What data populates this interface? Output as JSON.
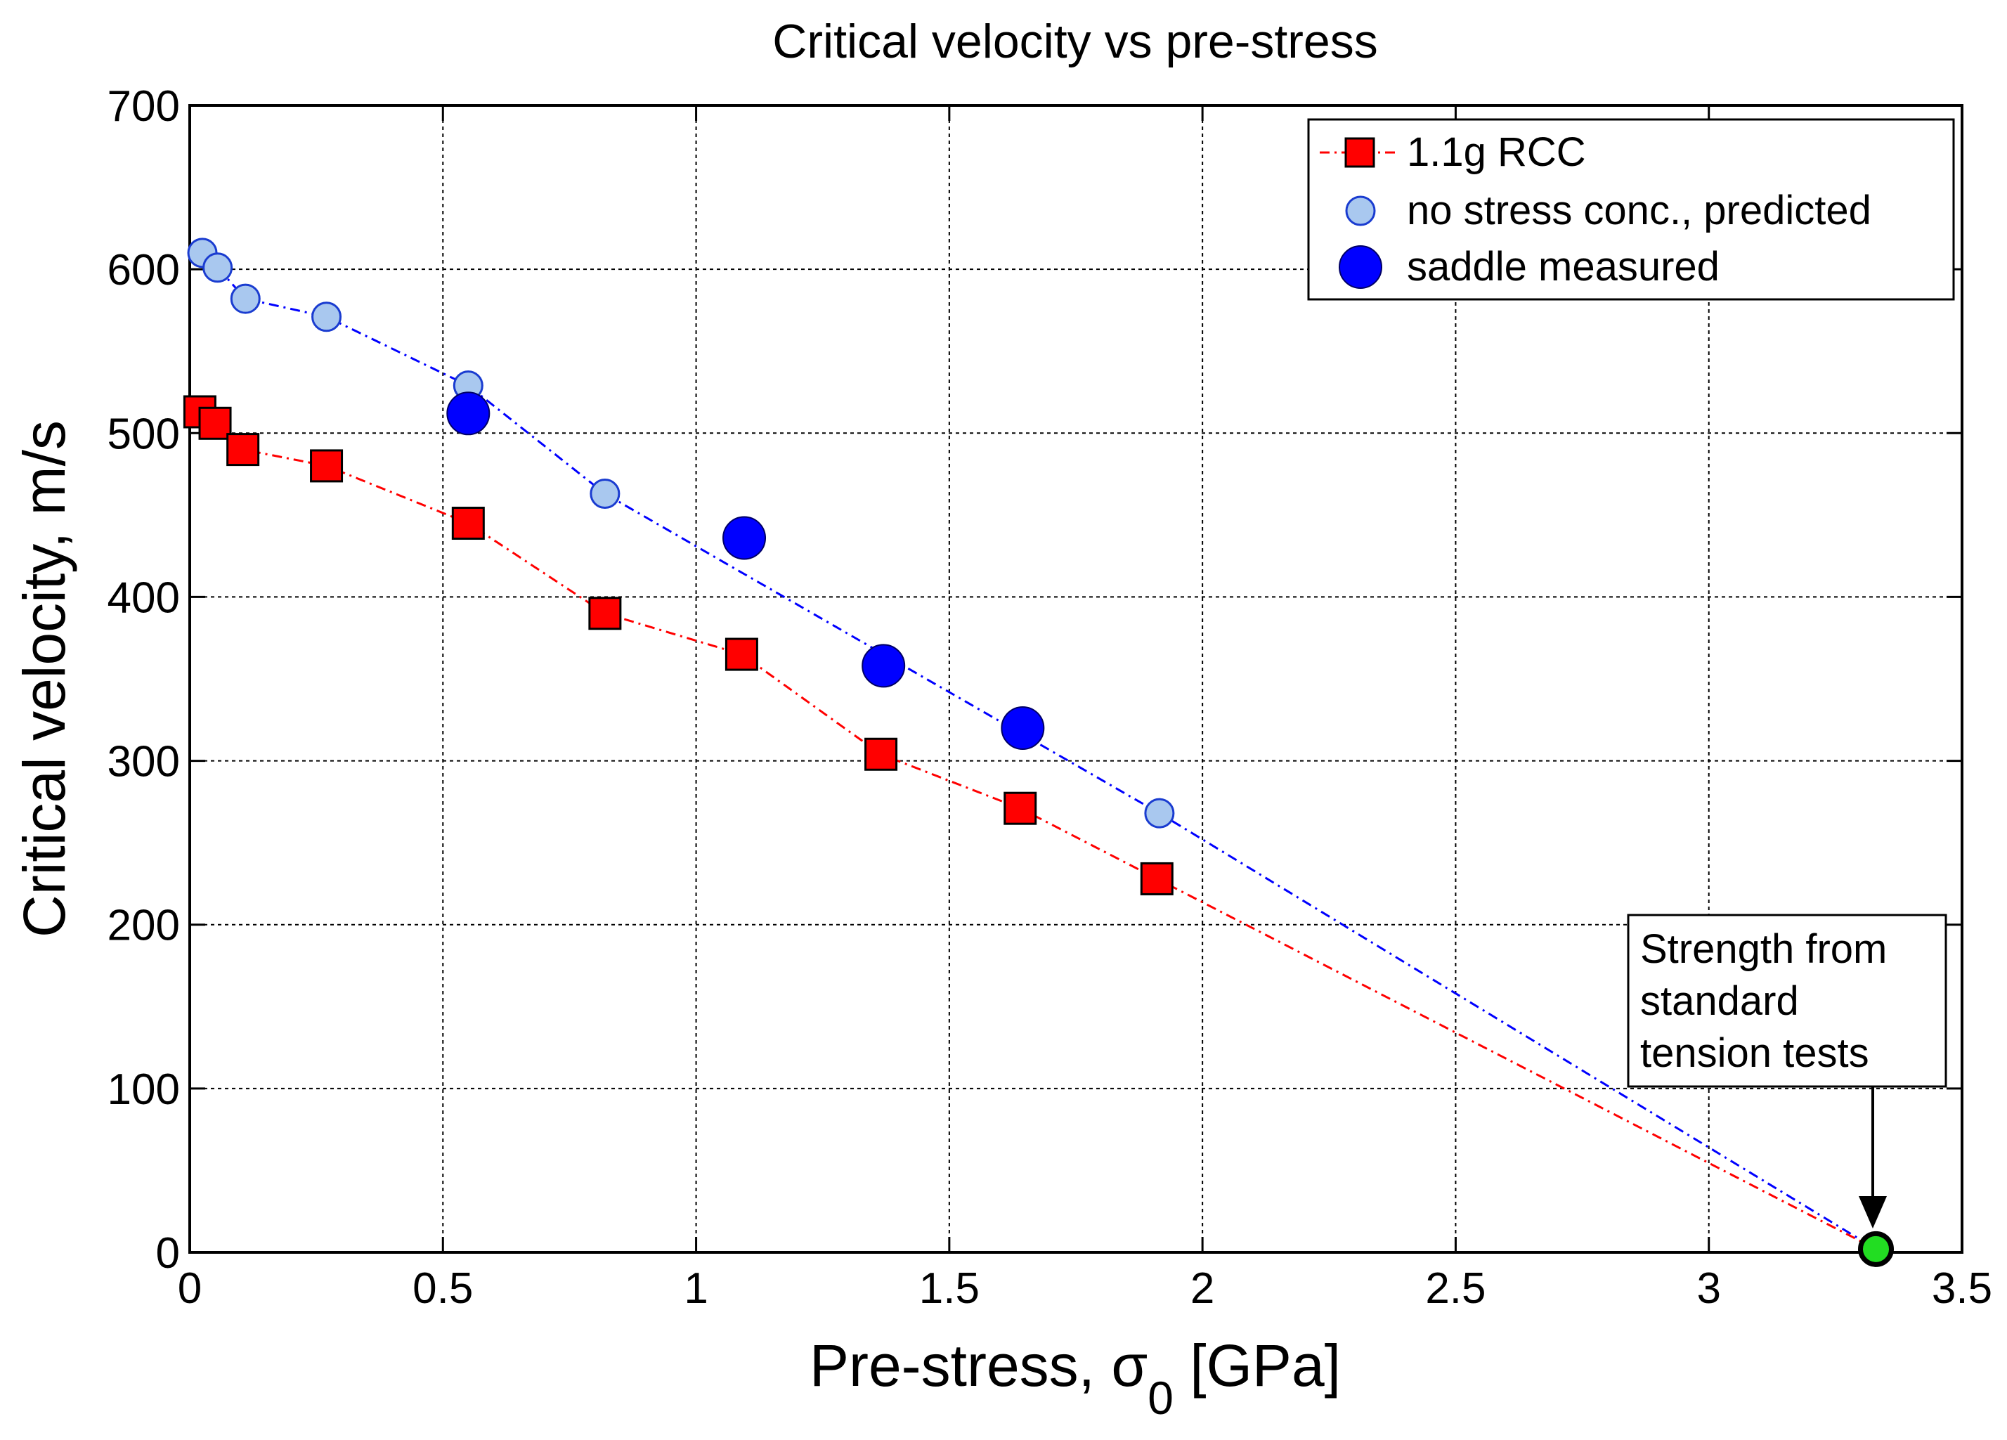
{
  "chart_data": {
    "type": "line",
    "title": "Critical velocity vs pre-stress",
    "xlabel": "Pre-stress, σ",
    "xlabel_sub": "0",
    "xlabel_unit": " [GPa]",
    "ylabel": "Critical velocity, m/s",
    "xlim": [
      0,
      3.5
    ],
    "ylim": [
      0,
      700
    ],
    "xticks": [
      0,
      0.5,
      1,
      1.5,
      2,
      2.5,
      3,
      3.5
    ],
    "xtick_labels": [
      "0",
      "0.5",
      "1",
      "1.5",
      "2",
      "2.5",
      "3",
      "3.5"
    ],
    "yticks": [
      0,
      100,
      200,
      300,
      400,
      500,
      600,
      700
    ],
    "ytick_labels": [
      "0",
      "100",
      "200",
      "300",
      "400",
      "500",
      "600",
      "700"
    ],
    "grid": true,
    "legend_position": "top-right",
    "series": [
      {
        "name": "1.1g RCC",
        "marker": "square",
        "line": "dash-dot",
        "color": "#ff0000",
        "line_color": "#ff0000",
        "x": [
          0.02,
          0.05,
          0.105,
          0.27,
          0.55,
          0.82,
          1.09,
          1.365,
          1.64,
          1.91,
          3.33
        ],
        "y": [
          513,
          506,
          490,
          480,
          445,
          390,
          365,
          304,
          271,
          228,
          2
        ],
        "marker_count": 10
      },
      {
        "name": "no stress conc., predicted",
        "marker": "circle-small",
        "line": "dash-dot",
        "color": "#a9c8ef",
        "line_color": "#0000ff",
        "x": [
          0.025,
          0.055,
          0.11,
          0.27,
          0.55,
          0.82,
          1.915,
          3.33
        ],
        "y": [
          610,
          601,
          582,
          571,
          529,
          463,
          268,
          2
        ],
        "marker_count": 7
      },
      {
        "name": "saddle measured",
        "marker": "circle-large",
        "line": "none",
        "color": "#0000ff",
        "x": [
          0.55,
          1.095,
          1.37,
          1.645
        ],
        "y": [
          512,
          436,
          358,
          320
        ]
      }
    ],
    "annotation": {
      "lines": [
        "Strength from",
        "standard",
        "tension tests"
      ],
      "point": {
        "x": 3.33,
        "y": 2
      },
      "point_color": "#22dd22"
    }
  }
}
